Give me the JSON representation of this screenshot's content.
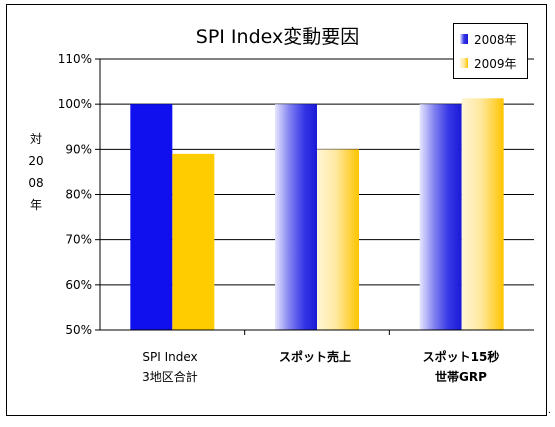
{
  "chart_data": {
    "type": "bar",
    "title": "SPI Index変動要因",
    "ylabel": "対2008年",
    "ylim": [
      50,
      110
    ],
    "yticks": [
      "50%",
      "60%",
      "70%",
      "80%",
      "90%",
      "100%",
      "110%"
    ],
    "grid": true,
    "legend_position": "top-right",
    "categories": [
      {
        "line1": "SPI Index",
        "line2": "3地区合計"
      },
      {
        "line1": "スポット売上",
        "line2": ""
      },
      {
        "line1": "スポット15秒",
        "line2": "世帯GRP"
      }
    ],
    "series": [
      {
        "name": "2008年",
        "values": [
          100,
          100,
          100
        ],
        "color": "#1010ee"
      },
      {
        "name": "2009年",
        "values": [
          89,
          90,
          101.3
        ],
        "color": "#ffcc00"
      }
    ]
  },
  "corner_mark": "."
}
